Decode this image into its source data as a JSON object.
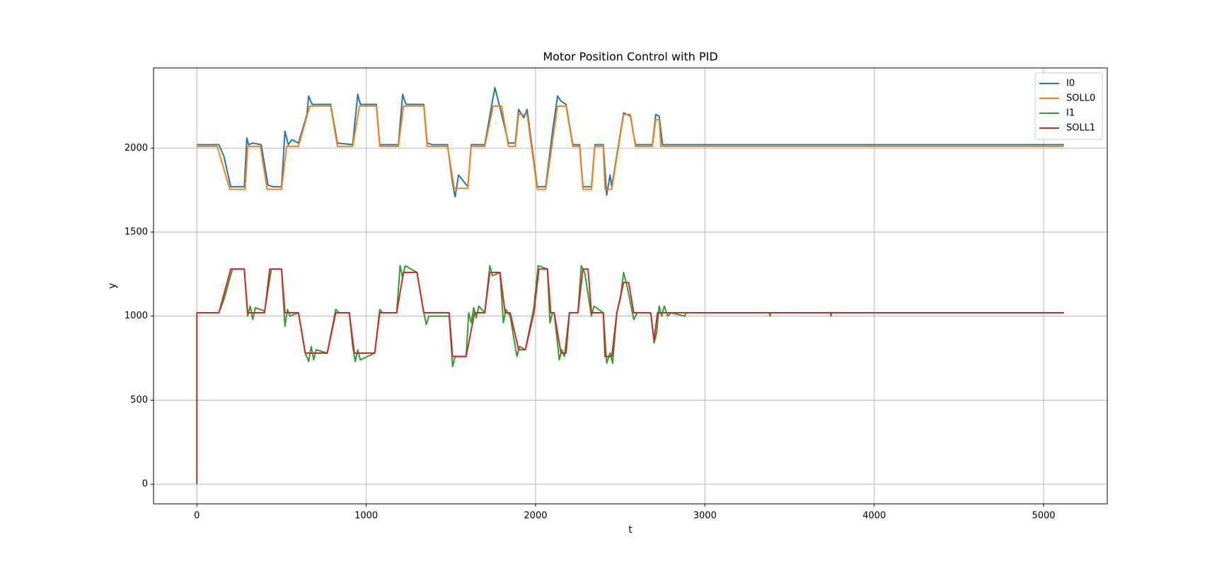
{
  "chart_data": {
    "type": "line",
    "title": "Motor Position Control with PID",
    "x_label": "t",
    "y_label": "y",
    "xlim": [
      -256,
      5376
    ],
    "xticks": [
      0,
      1000,
      2000,
      3000,
      4000,
      5000
    ],
    "ylim": [
      -117,
      2477
    ],
    "yticks": [
      0,
      500,
      1000,
      1500,
      2000
    ],
    "grid": true,
    "legend": "upper right",
    "series": [
      {
        "name": "I0",
        "color": "#1f77b4",
        "x": [
          0,
          130,
          160,
          200,
          280,
          295,
          305,
          330,
          380,
          420,
          450,
          500,
          520,
          540,
          560,
          600,
          650,
          660,
          680,
          790,
          830,
          920,
          950,
          965,
          1060,
          1080,
          1190,
          1215,
          1235,
          1340,
          1360,
          1390,
          1480,
          1510,
          1525,
          1545,
          1600,
          1620,
          1700,
          1740,
          1760,
          1790,
          1840,
          1880,
          1900,
          1930,
          1950,
          2010,
          2060,
          2100,
          2130,
          2150,
          2180,
          2220,
          2260,
          2280,
          2330,
          2350,
          2400,
          2420,
          2440,
          2450,
          2520,
          2540,
          2560,
          2590,
          2690,
          2710,
          2730,
          2750,
          2800,
          5120
        ],
        "values": [
          2020,
          2020,
          1950,
          1770,
          1770,
          2060,
          2020,
          2030,
          2020,
          1780,
          1770,
          1770,
          2100,
          2020,
          2050,
          2030,
          2200,
          2310,
          2260,
          2260,
          2030,
          2020,
          2320,
          2260,
          2260,
          2020,
          2020,
          2320,
          2260,
          2260,
          2030,
          2020,
          2020,
          1790,
          1710,
          1840,
          1770,
          2020,
          2020,
          2250,
          2360,
          2240,
          2030,
          2030,
          2230,
          2180,
          2230,
          1770,
          1770,
          2100,
          2310,
          2280,
          2260,
          2020,
          2020,
          1770,
          1770,
          2020,
          2020,
          1720,
          1840,
          1770,
          2210,
          2200,
          2190,
          2020,
          2020,
          2200,
          2190,
          2020,
          2020,
          2020
        ]
      },
      {
        "name": "SOLL0",
        "color": "#ff7f0e",
        "x": [
          0,
          120,
          195,
          285,
          300,
          375,
          415,
          500,
          530,
          600,
          667,
          790,
          830,
          920,
          960,
          1060,
          1080,
          1190,
          1220,
          1340,
          1360,
          1480,
          1520,
          1600,
          1620,
          1700,
          1750,
          1800,
          1840,
          1880,
          1900,
          1950,
          2010,
          2060,
          2130,
          2180,
          2220,
          2260,
          2280,
          2330,
          2350,
          2400,
          2410,
          2450,
          2520,
          2560,
          2590,
          2690,
          2710,
          2730,
          2740,
          5120
        ],
        "values": [
          2010,
          2010,
          1755,
          1755,
          2010,
          2010,
          1755,
          1755,
          2010,
          2010,
          2250,
          2250,
          2010,
          2010,
          2250,
          2250,
          2010,
          2010,
          2250,
          2250,
          2010,
          2010,
          1760,
          1760,
          2010,
          2010,
          2250,
          2250,
          2010,
          2010,
          2200,
          2200,
          1755,
          1755,
          2250,
          2250,
          2010,
          2010,
          1755,
          1755,
          2010,
          2010,
          1755,
          1755,
          2200,
          2200,
          2010,
          2010,
          2170,
          2170,
          2010,
          2010
        ]
      },
      {
        "name": "I1",
        "color": "#2ca02c",
        "x": [
          0,
          130,
          160,
          210,
          280,
          300,
          315,
          330,
          345,
          400,
          440,
          500,
          520,
          535,
          550,
          600,
          640,
          660,
          675,
          690,
          705,
          770,
          820,
          840,
          900,
          920,
          935,
          950,
          965,
          1050,
          1080,
          1095,
          1180,
          1200,
          1215,
          1230,
          1300,
          1340,
          1355,
          1370,
          1490,
          1510,
          1525,
          1590,
          1605,
          1620,
          1635,
          1650,
          1665,
          1700,
          1730,
          1745,
          1790,
          1810,
          1825,
          1850,
          1890,
          1905,
          1940,
          1990,
          2015,
          2070,
          2085,
          2100,
          2110,
          2140,
          2155,
          2170,
          2200,
          2250,
          2270,
          2290,
          2330,
          2345,
          2400,
          2420,
          2440,
          2455,
          2480,
          2500,
          2520,
          2540,
          2580,
          2600,
          2680,
          2700,
          2715,
          2730,
          2745,
          2760,
          2780,
          2800,
          2880,
          2890,
          3380,
          3385,
          3390,
          3740,
          3745,
          3750,
          5120
        ],
        "values": [
          1020,
          1020,
          1100,
          1280,
          1280,
          1000,
          1060,
          980,
          1050,
          1030,
          1280,
          1280,
          940,
          1040,
          1000,
          1020,
          780,
          730,
          820,
          740,
          800,
          780,
          1040,
          1020,
          1020,
          820,
          730,
          800,
          740,
          780,
          1040,
          1020,
          1020,
          1300,
          1230,
          1300,
          1260,
          1020,
          950,
          1000,
          1000,
          700,
          760,
          760,
          1020,
          960,
          1050,
          990,
          1060,
          1020,
          1300,
          1240,
          1260,
          960,
          1040,
          1000,
          760,
          820,
          800,
          1050,
          1300,
          1280,
          960,
          1020,
          1020,
          740,
          800,
          760,
          1020,
          1020,
          1300,
          1260,
          1000,
          1060,
          1020,
          720,
          780,
          720,
          1020,
          1100,
          1260,
          1180,
          980,
          1020,
          1020,
          840,
          900,
          1060,
          1000,
          1060,
          1000,
          1020,
          1000,
          1020,
          1020,
          1000,
          1020,
          1020,
          1000,
          1020,
          1020
        ]
      },
      {
        "name": "SOLL1",
        "color": "#d62728",
        "x": [
          0,
          0,
          130,
          200,
          280,
          300,
          400,
          430,
          500,
          520,
          600,
          640,
          770,
          820,
          900,
          930,
          1050,
          1080,
          1180,
          1220,
          1300,
          1340,
          1490,
          1510,
          1590,
          1640,
          1700,
          1730,
          1790,
          1820,
          1850,
          1900,
          1940,
          1990,
          2020,
          2070,
          2090,
          2110,
          2150,
          2180,
          2200,
          2250,
          2280,
          2310,
          2330,
          2400,
          2410,
          2450,
          2480,
          2520,
          2550,
          2580,
          2680,
          2700,
          2720,
          5120
        ],
        "values": [
          0,
          1020,
          1020,
          1280,
          1280,
          1020,
          1020,
          1280,
          1280,
          1020,
          1020,
          780,
          780,
          1020,
          1020,
          780,
          780,
          1020,
          1020,
          1260,
          1260,
          1020,
          1020,
          760,
          760,
          1020,
          1020,
          1260,
          1260,
          1020,
          1020,
          800,
          800,
          1020,
          1280,
          1280,
          1020,
          1020,
          780,
          780,
          1020,
          1020,
          1280,
          1280,
          1020,
          1020,
          760,
          760,
          1020,
          1200,
          1200,
          1020,
          1020,
          860,
          1020,
          1020
        ]
      }
    ]
  }
}
